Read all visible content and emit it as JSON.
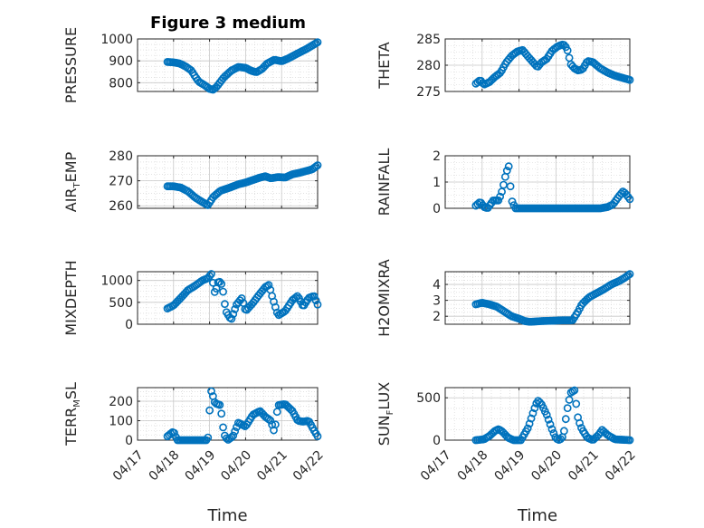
{
  "figure": {
    "title": "Figure 3 medium"
  },
  "chart_data": [
    {
      "id": "pressure",
      "type": "scatter",
      "title": "Figure 3 medium",
      "ylabel": "PRESSURE",
      "ylim": [
        760,
        1000
      ],
      "yticks": [
        800,
        900,
        1000
      ],
      "grid": true,
      "xlim": [
        0,
        5
      ],
      "xticklabels": [],
      "knots": [
        [
          0.83,
          895
        ],
        [
          1.0,
          893
        ],
        [
          1.17,
          888
        ],
        [
          1.33,
          875
        ],
        [
          1.5,
          855
        ],
        [
          1.6,
          828
        ],
        [
          1.7,
          805
        ],
        [
          1.85,
          790
        ],
        [
          2.0,
          772
        ],
        [
          2.1,
          768
        ],
        [
          2.2,
          782
        ],
        [
          2.4,
          825
        ],
        [
          2.6,
          855
        ],
        [
          2.8,
          872
        ],
        [
          3.0,
          868
        ],
        [
          3.15,
          855
        ],
        [
          3.3,
          848
        ],
        [
          3.45,
          862
        ],
        [
          3.6,
          888
        ],
        [
          3.8,
          905
        ],
        [
          4.0,
          898
        ],
        [
          4.2,
          912
        ],
        [
          4.4,
          930
        ],
        [
          4.7,
          955
        ],
        [
          5.0,
          985
        ]
      ]
    },
    {
      "id": "theta",
      "type": "scatter",
      "ylabel": "THETA",
      "ylim": [
        275,
        285
      ],
      "yticks": [
        275,
        280,
        285
      ],
      "grid": true,
      "xlim": [
        0,
        5
      ],
      "xticklabels": [],
      "knots": [
        [
          0.83,
          276.5
        ],
        [
          0.95,
          277.2
        ],
        [
          1.05,
          276.3
        ],
        [
          1.2,
          276.8
        ],
        [
          1.35,
          277.8
        ],
        [
          1.5,
          278.6
        ],
        [
          1.65,
          280.5
        ],
        [
          1.8,
          281.8
        ],
        [
          1.95,
          282.6
        ],
        [
          2.1,
          282.9
        ],
        [
          2.2,
          282.0
        ],
        [
          2.35,
          280.8
        ],
        [
          2.5,
          279.6
        ],
        [
          2.6,
          280.5
        ],
        [
          2.75,
          281.2
        ],
        [
          2.9,
          282.8
        ],
        [
          3.05,
          283.6
        ],
        [
          3.2,
          284.0
        ],
        [
          3.3,
          283.2
        ],
        [
          3.4,
          280.2
        ],
        [
          3.5,
          279.4
        ],
        [
          3.6,
          279.0
        ],
        [
          3.72,
          279.2
        ],
        [
          3.85,
          280.8
        ],
        [
          4.0,
          280.6
        ],
        [
          4.2,
          279.4
        ],
        [
          4.4,
          278.6
        ],
        [
          4.6,
          278.0
        ],
        [
          4.8,
          277.6
        ],
        [
          5.0,
          277.2
        ]
      ]
    },
    {
      "id": "airtemp",
      "type": "scatter",
      "ylabel": "AIR_TEMP",
      "ylim": [
        259,
        280
      ],
      "yticks": [
        260,
        270,
        280
      ],
      "grid": true,
      "xlim": [
        0,
        5
      ],
      "xticklabels": [],
      "knots": [
        [
          0.83,
          267.8
        ],
        [
          1.0,
          267.8
        ],
        [
          1.2,
          267.3
        ],
        [
          1.4,
          265.8
        ],
        [
          1.6,
          263.3
        ],
        [
          1.8,
          261.5
        ],
        [
          1.95,
          260.2
        ],
        [
          2.1,
          263.5
        ],
        [
          2.3,
          266.0
        ],
        [
          2.55,
          267.2
        ],
        [
          2.8,
          268.6
        ],
        [
          3.0,
          269.3
        ],
        [
          3.2,
          270.3
        ],
        [
          3.4,
          271.3
        ],
        [
          3.55,
          271.8
        ],
        [
          3.7,
          271.0
        ],
        [
          3.9,
          271.5
        ],
        [
          4.1,
          271.3
        ],
        [
          4.3,
          272.6
        ],
        [
          4.5,
          273.2
        ],
        [
          4.7,
          274.0
        ],
        [
          4.85,
          274.6
        ],
        [
          5.0,
          276.2
        ]
      ]
    },
    {
      "id": "rainfall",
      "type": "scatter",
      "ylabel": "RAINFALL",
      "ylim": [
        0,
        2
      ],
      "yticks": [
        0,
        1,
        2
      ],
      "grid": true,
      "xlim": [
        0,
        5
      ],
      "xticklabels": [],
      "knots": [
        [
          0.83,
          0.1
        ],
        [
          0.95,
          0.25
        ],
        [
          1.05,
          0.05
        ],
        [
          1.15,
          0.0
        ],
        [
          1.3,
          0.3
        ],
        [
          1.45,
          0.3
        ],
        [
          1.55,
          0.7
        ],
        [
          1.65,
          1.35
        ],
        [
          1.72,
          1.6
        ],
        [
          1.8,
          0.3
        ],
        [
          1.9,
          0.0
        ],
        [
          2.5,
          0.0
        ],
        [
          3.0,
          0.0
        ],
        [
          3.5,
          0.0
        ],
        [
          4.2,
          0.0
        ],
        [
          4.4,
          0.05
        ],
        [
          4.55,
          0.15
        ],
        [
          4.7,
          0.45
        ],
        [
          4.82,
          0.65
        ],
        [
          4.92,
          0.5
        ],
        [
          5.0,
          0.35
        ]
      ]
    },
    {
      "id": "mixdepth",
      "type": "scatter",
      "ylabel": "MIXDEPTH",
      "ylim": [
        0,
        1200
      ],
      "yticks": [
        0,
        500,
        1000
      ],
      "grid": true,
      "xlim": [
        0,
        5
      ],
      "xticklabels": [],
      "knots": [
        [
          0.83,
          360
        ],
        [
          1.0,
          430
        ],
        [
          1.2,
          600
        ],
        [
          1.4,
          780
        ],
        [
          1.6,
          880
        ],
        [
          1.8,
          1000
        ],
        [
          1.95,
          1050
        ],
        [
          2.05,
          1150
        ],
        [
          2.15,
          700
        ],
        [
          2.25,
          1000
        ],
        [
          2.35,
          900
        ],
        [
          2.45,
          300
        ],
        [
          2.6,
          100
        ],
        [
          2.75,
          450
        ],
        [
          2.9,
          600
        ],
        [
          3.0,
          300
        ],
        [
          3.2,
          480
        ],
        [
          3.4,
          700
        ],
        [
          3.55,
          850
        ],
        [
          3.65,
          900
        ],
        [
          3.75,
          600
        ],
        [
          3.9,
          200
        ],
        [
          4.1,
          300
        ],
        [
          4.3,
          550
        ],
        [
          4.45,
          650
        ],
        [
          4.6,
          400
        ],
        [
          4.75,
          600
        ],
        [
          4.9,
          650
        ],
        [
          5.0,
          450
        ]
      ]
    },
    {
      "id": "h2omixra",
      "type": "scatter",
      "ylabel": "H2OMIXRA",
      "ylim": [
        1.5,
        4.8
      ],
      "yticks": [
        2,
        3,
        4
      ],
      "grid": true,
      "xlim": [
        0,
        5
      ],
      "xticklabels": [],
      "knots": [
        [
          0.83,
          2.75
        ],
        [
          1.0,
          2.85
        ],
        [
          1.2,
          2.75
        ],
        [
          1.4,
          2.6
        ],
        [
          1.6,
          2.3
        ],
        [
          1.8,
          2.0
        ],
        [
          2.0,
          1.85
        ],
        [
          2.15,
          1.7
        ],
        [
          2.3,
          1.65
        ],
        [
          2.6,
          1.7
        ],
        [
          2.9,
          1.72
        ],
        [
          3.2,
          1.75
        ],
        [
          3.45,
          1.75
        ],
        [
          3.6,
          2.3
        ],
        [
          3.7,
          2.75
        ],
        [
          3.9,
          3.2
        ],
        [
          4.1,
          3.45
        ],
        [
          4.3,
          3.7
        ],
        [
          4.5,
          4.0
        ],
        [
          4.7,
          4.2
        ],
        [
          4.85,
          4.4
        ],
        [
          5.0,
          4.65
        ]
      ]
    },
    {
      "id": "terrmsl",
      "type": "scatter",
      "ylabel": "TERR_MSL",
      "ylim": [
        0,
        270
      ],
      "yticks": [
        0,
        100,
        200
      ],
      "grid": true,
      "xlim": [
        0,
        5
      ],
      "xticklabels": [
        "04/17",
        "04/18",
        "04/19",
        "04/20",
        "04/21",
        "04/22"
      ],
      "xlabel": "Time",
      "knots": [
        [
          0.83,
          20
        ],
        [
          0.9,
          30
        ],
        [
          1.0,
          45
        ],
        [
          1.1,
          0
        ],
        [
          1.5,
          0
        ],
        [
          1.8,
          0
        ],
        [
          1.95,
          0
        ],
        [
          2.0,
          150
        ],
        [
          2.05,
          255
        ],
        [
          2.15,
          190
        ],
        [
          2.3,
          180
        ],
        [
          2.4,
          30
        ],
        [
          2.5,
          0
        ],
        [
          2.65,
          20
        ],
        [
          2.8,
          90
        ],
        [
          3.0,
          70
        ],
        [
          3.2,
          130
        ],
        [
          3.4,
          150
        ],
        [
          3.55,
          120
        ],
        [
          3.7,
          100
        ],
        [
          3.8,
          40
        ],
        [
          3.9,
          180
        ],
        [
          4.1,
          185
        ],
        [
          4.3,
          150
        ],
        [
          4.45,
          100
        ],
        [
          4.6,
          95
        ],
        [
          4.75,
          100
        ],
        [
          4.9,
          50
        ],
        [
          5.0,
          20
        ]
      ]
    },
    {
      "id": "sunflux",
      "type": "scatter",
      "ylabel": "SUN_FLUX",
      "ylim": [
        0,
        620
      ],
      "yticks": [
        0,
        500
      ],
      "grid": true,
      "xlim": [
        0,
        5
      ],
      "xticklabels": [
        "04/17",
        "04/18",
        "04/19",
        "04/20",
        "04/21",
        "04/22"
      ],
      "xlabel": "Time",
      "knots": [
        [
          0.83,
          0
        ],
        [
          1.05,
          10
        ],
        [
          1.2,
          50
        ],
        [
          1.35,
          110
        ],
        [
          1.45,
          130
        ],
        [
          1.55,
          100
        ],
        [
          1.7,
          30
        ],
        [
          1.85,
          0
        ],
        [
          2.05,
          0
        ],
        [
          2.25,
          150
        ],
        [
          2.4,
          350
        ],
        [
          2.5,
          470
        ],
        [
          2.6,
          430
        ],
        [
          2.75,
          300
        ],
        [
          2.9,
          120
        ],
        [
          3.0,
          20
        ],
        [
          3.1,
          0
        ],
        [
          3.2,
          50
        ],
        [
          3.3,
          350
        ],
        [
          3.4,
          560
        ],
        [
          3.5,
          590
        ],
        [
          3.6,
          250
        ],
        [
          3.7,
          130
        ],
        [
          3.85,
          30
        ],
        [
          4.0,
          0
        ],
        [
          4.15,
          60
        ],
        [
          4.25,
          120
        ],
        [
          4.4,
          60
        ],
        [
          4.6,
          10
        ],
        [
          4.8,
          5
        ],
        [
          5.0,
          0
        ]
      ]
    }
  ],
  "style": {
    "marker_color": "#0072BD",
    "axis_color": "#262626",
    "grid_color": "#d0d0d0"
  }
}
